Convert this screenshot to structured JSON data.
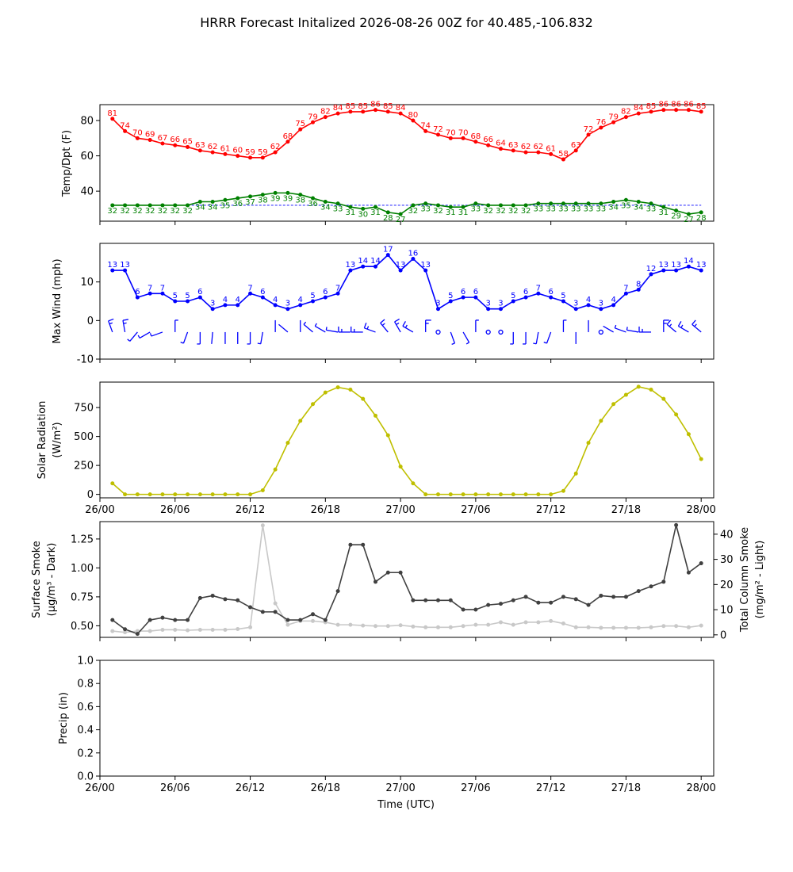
{
  "title": "HRRR Forecast Initalized 2026-08-26 00Z for 40.485,-106.832",
  "x_axis": {
    "label": "Time (UTC)",
    "tick_labels": [
      "26/00",
      "26/06",
      "26/12",
      "26/18",
      "27/00",
      "27/06",
      "27/12",
      "27/18",
      "28/00"
    ]
  },
  "chart_data": [
    {
      "type": "line",
      "panel": "temperature",
      "ylabel": "Temp/Dpt (F)",
      "ylim": [
        23,
        89
      ],
      "yticks": [
        40,
        60,
        80
      ],
      "x_hours": [
        1,
        2,
        3,
        4,
        5,
        6,
        7,
        8,
        9,
        10,
        11,
        12,
        13,
        14,
        15,
        16,
        17,
        18,
        19,
        20,
        21,
        22,
        23,
        24,
        25,
        26,
        27,
        28,
        29,
        30,
        31,
        32,
        33,
        34,
        35,
        36,
        37,
        38,
        39,
        40,
        41,
        42,
        43,
        44,
        45,
        46,
        47,
        48
      ],
      "series": [
        {
          "values": [
            81,
            74,
            70,
            69,
            67,
            66,
            65,
            63,
            62,
            61,
            60,
            59,
            59,
            62,
            68,
            75,
            79,
            82,
            84,
            85,
            85,
            86,
            85,
            84,
            80,
            74,
            72,
            70,
            70,
            68,
            66,
            64,
            63,
            62,
            62,
            61,
            58,
            63,
            72,
            76,
            79,
            82,
            84,
            85,
            86,
            86,
            86,
            85
          ],
          "color": "#ff0000"
        },
        {
          "values": [
            32,
            32,
            32,
            32,
            32,
            32,
            32,
            34,
            34,
            35,
            36,
            37,
            38,
            39,
            39,
            38,
            36,
            34,
            33,
            31,
            30,
            31,
            28,
            27,
            32,
            33,
            32,
            31,
            31,
            33,
            32,
            32,
            32,
            32,
            33,
            33,
            33,
            33,
            33,
            33,
            34,
            35,
            34,
            33,
            31,
            29,
            27,
            28
          ],
          "color": "#008000"
        }
      ],
      "reference_line": {
        "y": 32,
        "color": "#0000ff",
        "style": "dashed"
      }
    },
    {
      "type": "line",
      "panel": "wind",
      "ylabel": "Max Wind (mph)",
      "ylim": [
        -10,
        20
      ],
      "yticks": [
        -10,
        0,
        10
      ],
      "x_hours": [
        1,
        2,
        3,
        4,
        5,
        6,
        7,
        8,
        9,
        10,
        11,
        12,
        13,
        14,
        15,
        16,
        17,
        18,
        19,
        20,
        21,
        22,
        23,
        24,
        25,
        26,
        27,
        28,
        29,
        30,
        31,
        32,
        33,
        34,
        35,
        36,
        37,
        38,
        39,
        40,
        41,
        42,
        43,
        44,
        45,
        46,
        47,
        48
      ],
      "series": [
        {
          "values": [
            13,
            13,
            6,
            7,
            7,
            5,
            5,
            6,
            3,
            4,
            4,
            7,
            6,
            4,
            3,
            4,
            5,
            6,
            7,
            13,
            14,
            14,
            17,
            13,
            16,
            13,
            3,
            5,
            6,
            6,
            3,
            3,
            5,
            6,
            7,
            6,
            5,
            3,
            4,
            3,
            4,
            7,
            8,
            12,
            13,
            13,
            14,
            13
          ],
          "color": "#0000ff"
        }
      ],
      "barbs": {
        "y": -3,
        "color": "#0000ff",
        "direction_deg": [
          340,
          350,
          220,
          240,
          250,
          0,
          200,
          180,
          185,
          180,
          180,
          180,
          190,
          0,
          310,
          0,
          310,
          300,
          280,
          270,
          270,
          290,
          320,
          330,
          300,
          0,
          0,
          160,
          150,
          0,
          0,
          0,
          180,
          180,
          190,
          200,
          0,
          180,
          0,
          0,
          300,
          290,
          280,
          270,
          0,
          310,
          300,
          310
        ]
      }
    },
    {
      "type": "line",
      "panel": "solar",
      "ylabel": "Solar Radiation",
      "ylabel_units": "(W/m²)",
      "ylim": [
        -30,
        970
      ],
      "yticks": [
        0,
        250,
        500,
        750
      ],
      "x_hours": [
        1,
        2,
        3,
        4,
        5,
        6,
        7,
        8,
        9,
        10,
        11,
        12,
        13,
        14,
        15,
        16,
        17,
        18,
        19,
        20,
        21,
        22,
        23,
        24,
        25,
        26,
        27,
        28,
        29,
        30,
        31,
        32,
        33,
        34,
        35,
        36,
        37,
        38,
        39,
        40,
        41,
        42,
        43,
        44,
        45,
        46,
        47,
        48
      ],
      "series": [
        {
          "values": [
            95,
            0,
            0,
            0,
            0,
            0,
            0,
            0,
            0,
            0,
            0,
            0,
            35,
            215,
            445,
            635,
            780,
            880,
            925,
            905,
            825,
            680,
            510,
            240,
            95,
            0,
            0,
            0,
            0,
            0,
            0,
            0,
            0,
            0,
            0,
            0,
            30,
            180,
            445,
            635,
            780,
            860,
            930,
            905,
            825,
            690,
            520,
            305
          ],
          "color": "#bfbf00"
        }
      ]
    },
    {
      "type": "line",
      "panel": "smoke",
      "ylabel": "Surface Smoke",
      "ylabel_units": "(μg/m³ - Dark)",
      "ylim": [
        0.4,
        1.4
      ],
      "yticks": [
        0.5,
        0.75,
        1.0,
        1.25
      ],
      "ytick_labels": [
        "0.50",
        "0.75",
        "1.00",
        "1.25"
      ],
      "y2label": "Total Column Smoke",
      "y2label_units": "(mg/m² - Light)",
      "y2lim": [
        -1,
        45
      ],
      "y2ticks": [
        0,
        10,
        20,
        30,
        40
      ],
      "x_hours": [
        1,
        2,
        3,
        4,
        5,
        6,
        7,
        8,
        9,
        10,
        11,
        12,
        13,
        14,
        15,
        16,
        17,
        18,
        19,
        20,
        21,
        22,
        23,
        24,
        25,
        26,
        27,
        28,
        29,
        30,
        31,
        32,
        33,
        34,
        35,
        36,
        37,
        38,
        39,
        40,
        41,
        42,
        43,
        44,
        45,
        46,
        47,
        48
      ],
      "series": [
        {
          "axis": "left",
          "values": [
            0.55,
            0.47,
            0.43,
            0.55,
            0.57,
            0.55,
            0.55,
            0.74,
            0.76,
            0.73,
            0.72,
            0.66,
            0.62,
            0.62,
            0.55,
            0.55,
            0.6,
            0.55,
            0.8,
            1.2,
            1.2,
            0.88,
            0.96,
            0.96,
            0.72,
            0.72,
            0.72,
            0.72,
            0.64,
            0.64,
            0.68,
            0.69,
            0.72,
            0.75,
            0.7,
            0.7,
            0.75,
            0.73,
            0.68,
            0.76,
            0.75,
            0.75,
            0.8,
            0.84,
            0.88,
            1.37,
            0.96,
            1.04
          ],
          "color": "#404040"
        },
        {
          "axis": "right",
          "values": [
            1.5,
            1.0,
            1.5,
            1.5,
            2.0,
            2.0,
            1.8,
            2.0,
            2.0,
            2.0,
            2.3,
            3.0,
            43.5,
            12.5,
            4.0,
            5.5,
            5.5,
            5.0,
            4.0,
            4.0,
            3.7,
            3.5,
            3.5,
            3.8,
            3.3,
            3.0,
            3.0,
            3.0,
            3.5,
            4.0,
            4.0,
            5.0,
            4.0,
            5.0,
            5.0,
            5.5,
            4.5,
            3.0,
            3.0,
            2.8,
            2.8,
            2.8,
            2.8,
            3.0,
            3.5,
            3.5,
            3.0,
            3.7
          ],
          "color": "#c8c8c8"
        }
      ]
    },
    {
      "type": "line",
      "panel": "precip",
      "ylabel": "Precip (in)",
      "ylim": [
        0,
        1
      ],
      "yticks": [
        0.0,
        0.2,
        0.4,
        0.6,
        0.8,
        1.0
      ],
      "ytick_labels": [
        "0.0",
        "0.2",
        "0.4",
        "0.6",
        "0.8",
        "1.0"
      ],
      "series": []
    }
  ]
}
